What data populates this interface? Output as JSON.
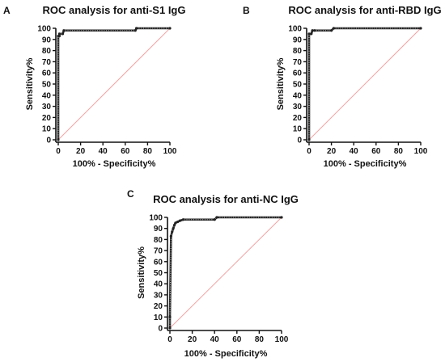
{
  "chart_data": [
    {
      "type": "line",
      "panel": "A",
      "title": "ROC analysis for anti-S1 IgG",
      "xlabel": "100% - Specificity%",
      "ylabel": "Sensitivity%",
      "xlim": [
        0,
        100
      ],
      "ylim": [
        0,
        100
      ],
      "xticks": [
        "0",
        "20",
        "40",
        "60",
        "80",
        "100"
      ],
      "yticks": [
        "0",
        "10",
        "20",
        "30",
        "40",
        "50",
        "60",
        "70",
        "80",
        "90",
        "100"
      ],
      "grid": false,
      "series": [
        {
          "x": [
            0,
            0,
            1,
            1,
            4,
            5,
            69,
            70,
            100
          ],
          "y": [
            0,
            93,
            93,
            95,
            95,
            98,
            98,
            100,
            100
          ]
        },
        {
          "x": [
            0,
            100
          ],
          "y": [
            0,
            100
          ]
        }
      ]
    },
    {
      "type": "line",
      "panel": "B",
      "title": "ROC analysis for anti-RBD IgG",
      "xlabel": "100% - Specificity%",
      "ylabel": "Sensitivity%",
      "xlim": [
        0,
        100
      ],
      "ylim": [
        0,
        100
      ],
      "xticks": [
        "0",
        "20",
        "40",
        "60",
        "80",
        "100"
      ],
      "yticks": [
        "0",
        "10",
        "20",
        "30",
        "40",
        "50",
        "60",
        "70",
        "80",
        "90",
        "100"
      ],
      "grid": false,
      "series": [
        {
          "x": [
            0,
            0,
            2,
            3,
            5,
            20,
            22,
            100
          ],
          "y": [
            0,
            95,
            95,
            98,
            98,
            98,
            100,
            100
          ]
        },
        {
          "x": [
            0,
            100
          ],
          "y": [
            0,
            100
          ]
        }
      ]
    },
    {
      "type": "line",
      "panel": "C",
      "title": "ROC analysis for anti-NC IgG",
      "xlabel": "100% - Specificity%",
      "ylabel": "Sensitivity%",
      "xlim": [
        0,
        100
      ],
      "ylim": [
        0,
        100
      ],
      "xticks": [
        "0",
        "20",
        "40",
        "60",
        "80",
        "100"
      ],
      "yticks": [
        "0",
        "10",
        "20",
        "30",
        "40",
        "50",
        "60",
        "70",
        "80",
        "90",
        "100"
      ],
      "grid": false,
      "series": [
        {
          "x": [
            0,
            0,
            1,
            2,
            3,
            4,
            5,
            7,
            9,
            12,
            40,
            42,
            100
          ],
          "y": [
            0,
            10,
            83,
            87,
            90,
            93,
            95,
            96,
            97,
            98,
            98,
            100,
            100
          ]
        },
        {
          "x": [
            0,
            100
          ],
          "y": [
            0,
            100
          ]
        }
      ]
    }
  ]
}
